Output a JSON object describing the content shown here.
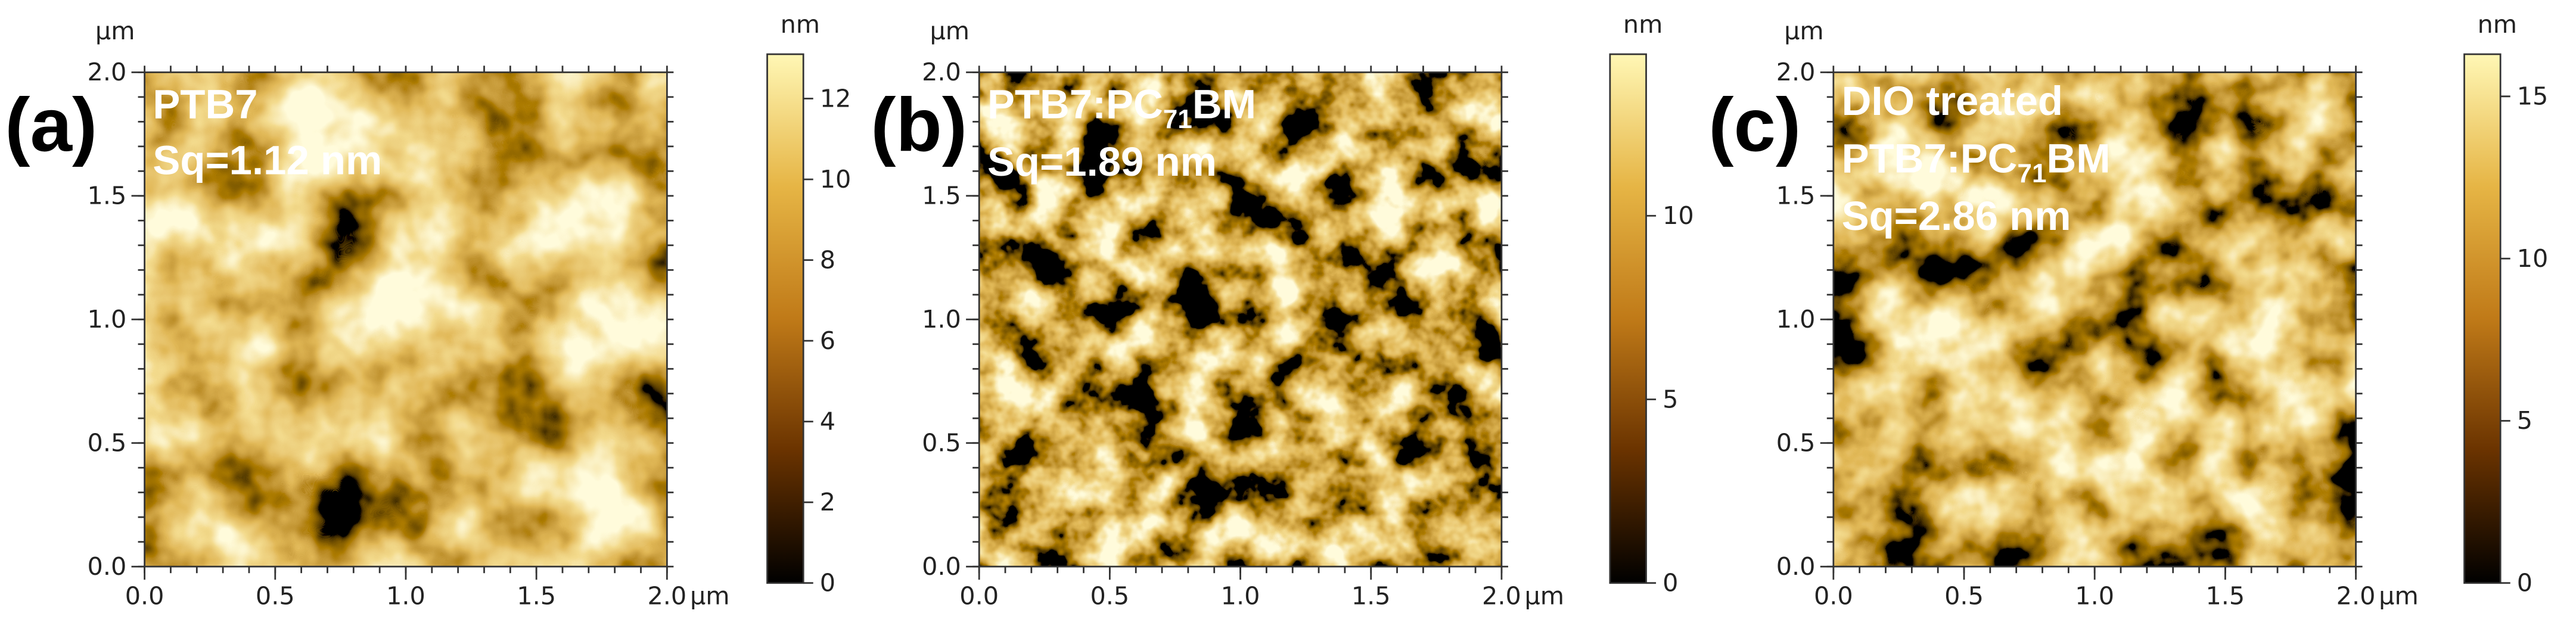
{
  "chart_data": [
    {
      "type": "heatmap",
      "panel_label": "(a)",
      "annotations": [
        [
          "PTB7"
        ],
        [
          "Sq=1.12 nm"
        ]
      ],
      "x_unit": "μm",
      "y_unit": "μm",
      "colorbar_label": "nm",
      "xlim": [
        0,
        2
      ],
      "ylim": [
        0,
        2
      ],
      "xticks": [
        {
          "value": 0,
          "label": "0.0"
        },
        {
          "value": 0.5,
          "label": "0.5"
        },
        {
          "value": 1,
          "label": "1.0"
        },
        {
          "value": 1.5,
          "label": "1.5"
        },
        {
          "value": 2,
          "label": "2.0"
        }
      ],
      "yticks": [
        {
          "value": 0,
          "label": "0.0"
        },
        {
          "value": 0.5,
          "label": "0.5"
        },
        {
          "value": 1,
          "label": "1.0"
        },
        {
          "value": 1.5,
          "label": "1.5"
        },
        {
          "value": 2,
          "label": "2.0"
        }
      ],
      "clim": [
        0,
        13.1
      ],
      "cticks": [
        0,
        2,
        4,
        6,
        8,
        10,
        12
      ],
      "colormap": [
        "#000000",
        "#6a3300",
        "#c07a18",
        "#e6b545",
        "#fff7b5"
      ]
    },
    {
      "type": "heatmap",
      "panel_label": "(b)",
      "annotations": [
        [
          "PTB7:PC",
          "71",
          "BM"
        ],
        [
          "Sq=1.89 nm"
        ]
      ],
      "x_unit": "μm",
      "y_unit": "μm",
      "colorbar_label": "nm",
      "xlim": [
        0,
        2
      ],
      "ylim": [
        0,
        2
      ],
      "xticks": [
        {
          "value": 0,
          "label": "0.0"
        },
        {
          "value": 0.5,
          "label": "0.5"
        },
        {
          "value": 1,
          "label": "1.0"
        },
        {
          "value": 1.5,
          "label": "1.5"
        },
        {
          "value": 2,
          "label": "2.0"
        }
      ],
      "yticks": [
        {
          "value": 0,
          "label": "0.0"
        },
        {
          "value": 0.5,
          "label": "0.5"
        },
        {
          "value": 1,
          "label": "1.0"
        },
        {
          "value": 1.5,
          "label": "1.5"
        },
        {
          "value": 2,
          "label": "2.0"
        }
      ],
      "clim": [
        0,
        14.4
      ],
      "cticks": [
        0,
        5,
        10
      ],
      "colormap": [
        "#000000",
        "#6a3300",
        "#c07a18",
        "#e6b545",
        "#fff7b5"
      ]
    },
    {
      "type": "heatmap",
      "panel_label": "(c)",
      "annotations": [
        [
          "DIO treated"
        ],
        [
          "PTB7:PC",
          "71",
          "BM"
        ],
        [
          "Sq=2.86 nm"
        ]
      ],
      "x_unit": "μm",
      "y_unit": "μm",
      "colorbar_label": "nm",
      "xlim": [
        0,
        2
      ],
      "ylim": [
        0,
        2
      ],
      "xticks": [
        {
          "value": 0,
          "label": "0.0"
        },
        {
          "value": 0.5,
          "label": "0.5"
        },
        {
          "value": 1,
          "label": "1.0"
        },
        {
          "value": 1.5,
          "label": "1.5"
        },
        {
          "value": 2,
          "label": "2.0"
        }
      ],
      "yticks": [
        {
          "value": 0,
          "label": "0.0"
        },
        {
          "value": 0.5,
          "label": "0.5"
        },
        {
          "value": 1,
          "label": "1.0"
        },
        {
          "value": 1.5,
          "label": "1.5"
        },
        {
          "value": 2,
          "label": "2.0"
        }
      ],
      "clim": [
        0,
        16.3
      ],
      "cticks": [
        0,
        5,
        10,
        15
      ],
      "colormap": [
        "#000000",
        "#6a3300",
        "#c07a18",
        "#e6b545",
        "#fff7b5"
      ]
    }
  ]
}
